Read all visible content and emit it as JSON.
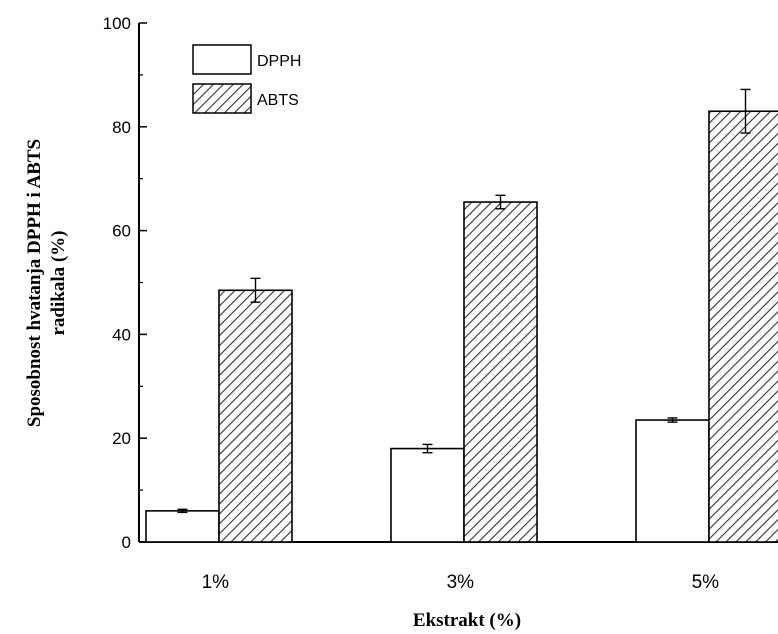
{
  "chart_data": {
    "type": "bar",
    "title": "",
    "xlabel": "Ekstrakt (%)",
    "ylabel_line1": "Sposobnost hvatanja DPPH i ABTS",
    "ylabel_line2": "radikala (%)",
    "ylim": [
      0,
      100
    ],
    "yticks": [
      "0",
      "20",
      "40",
      "60",
      "80",
      "100"
    ],
    "categories": [
      "1%",
      "3%",
      "5%"
    ],
    "legend_position": "top-left",
    "series": [
      {
        "name": "DPPH",
        "values": [
          6,
          18,
          23.5
        ],
        "errors": [
          0.3,
          0.8,
          0.4
        ],
        "fill": "#ffffff",
        "pattern": "none"
      },
      {
        "name": "ABTS",
        "values": [
          48.5,
          65.5,
          83
        ],
        "errors": [
          2.3,
          1.3,
          4.2
        ],
        "fill": "#ffffff",
        "pattern": "diagonal-hatch"
      }
    ],
    "grid": false
  }
}
